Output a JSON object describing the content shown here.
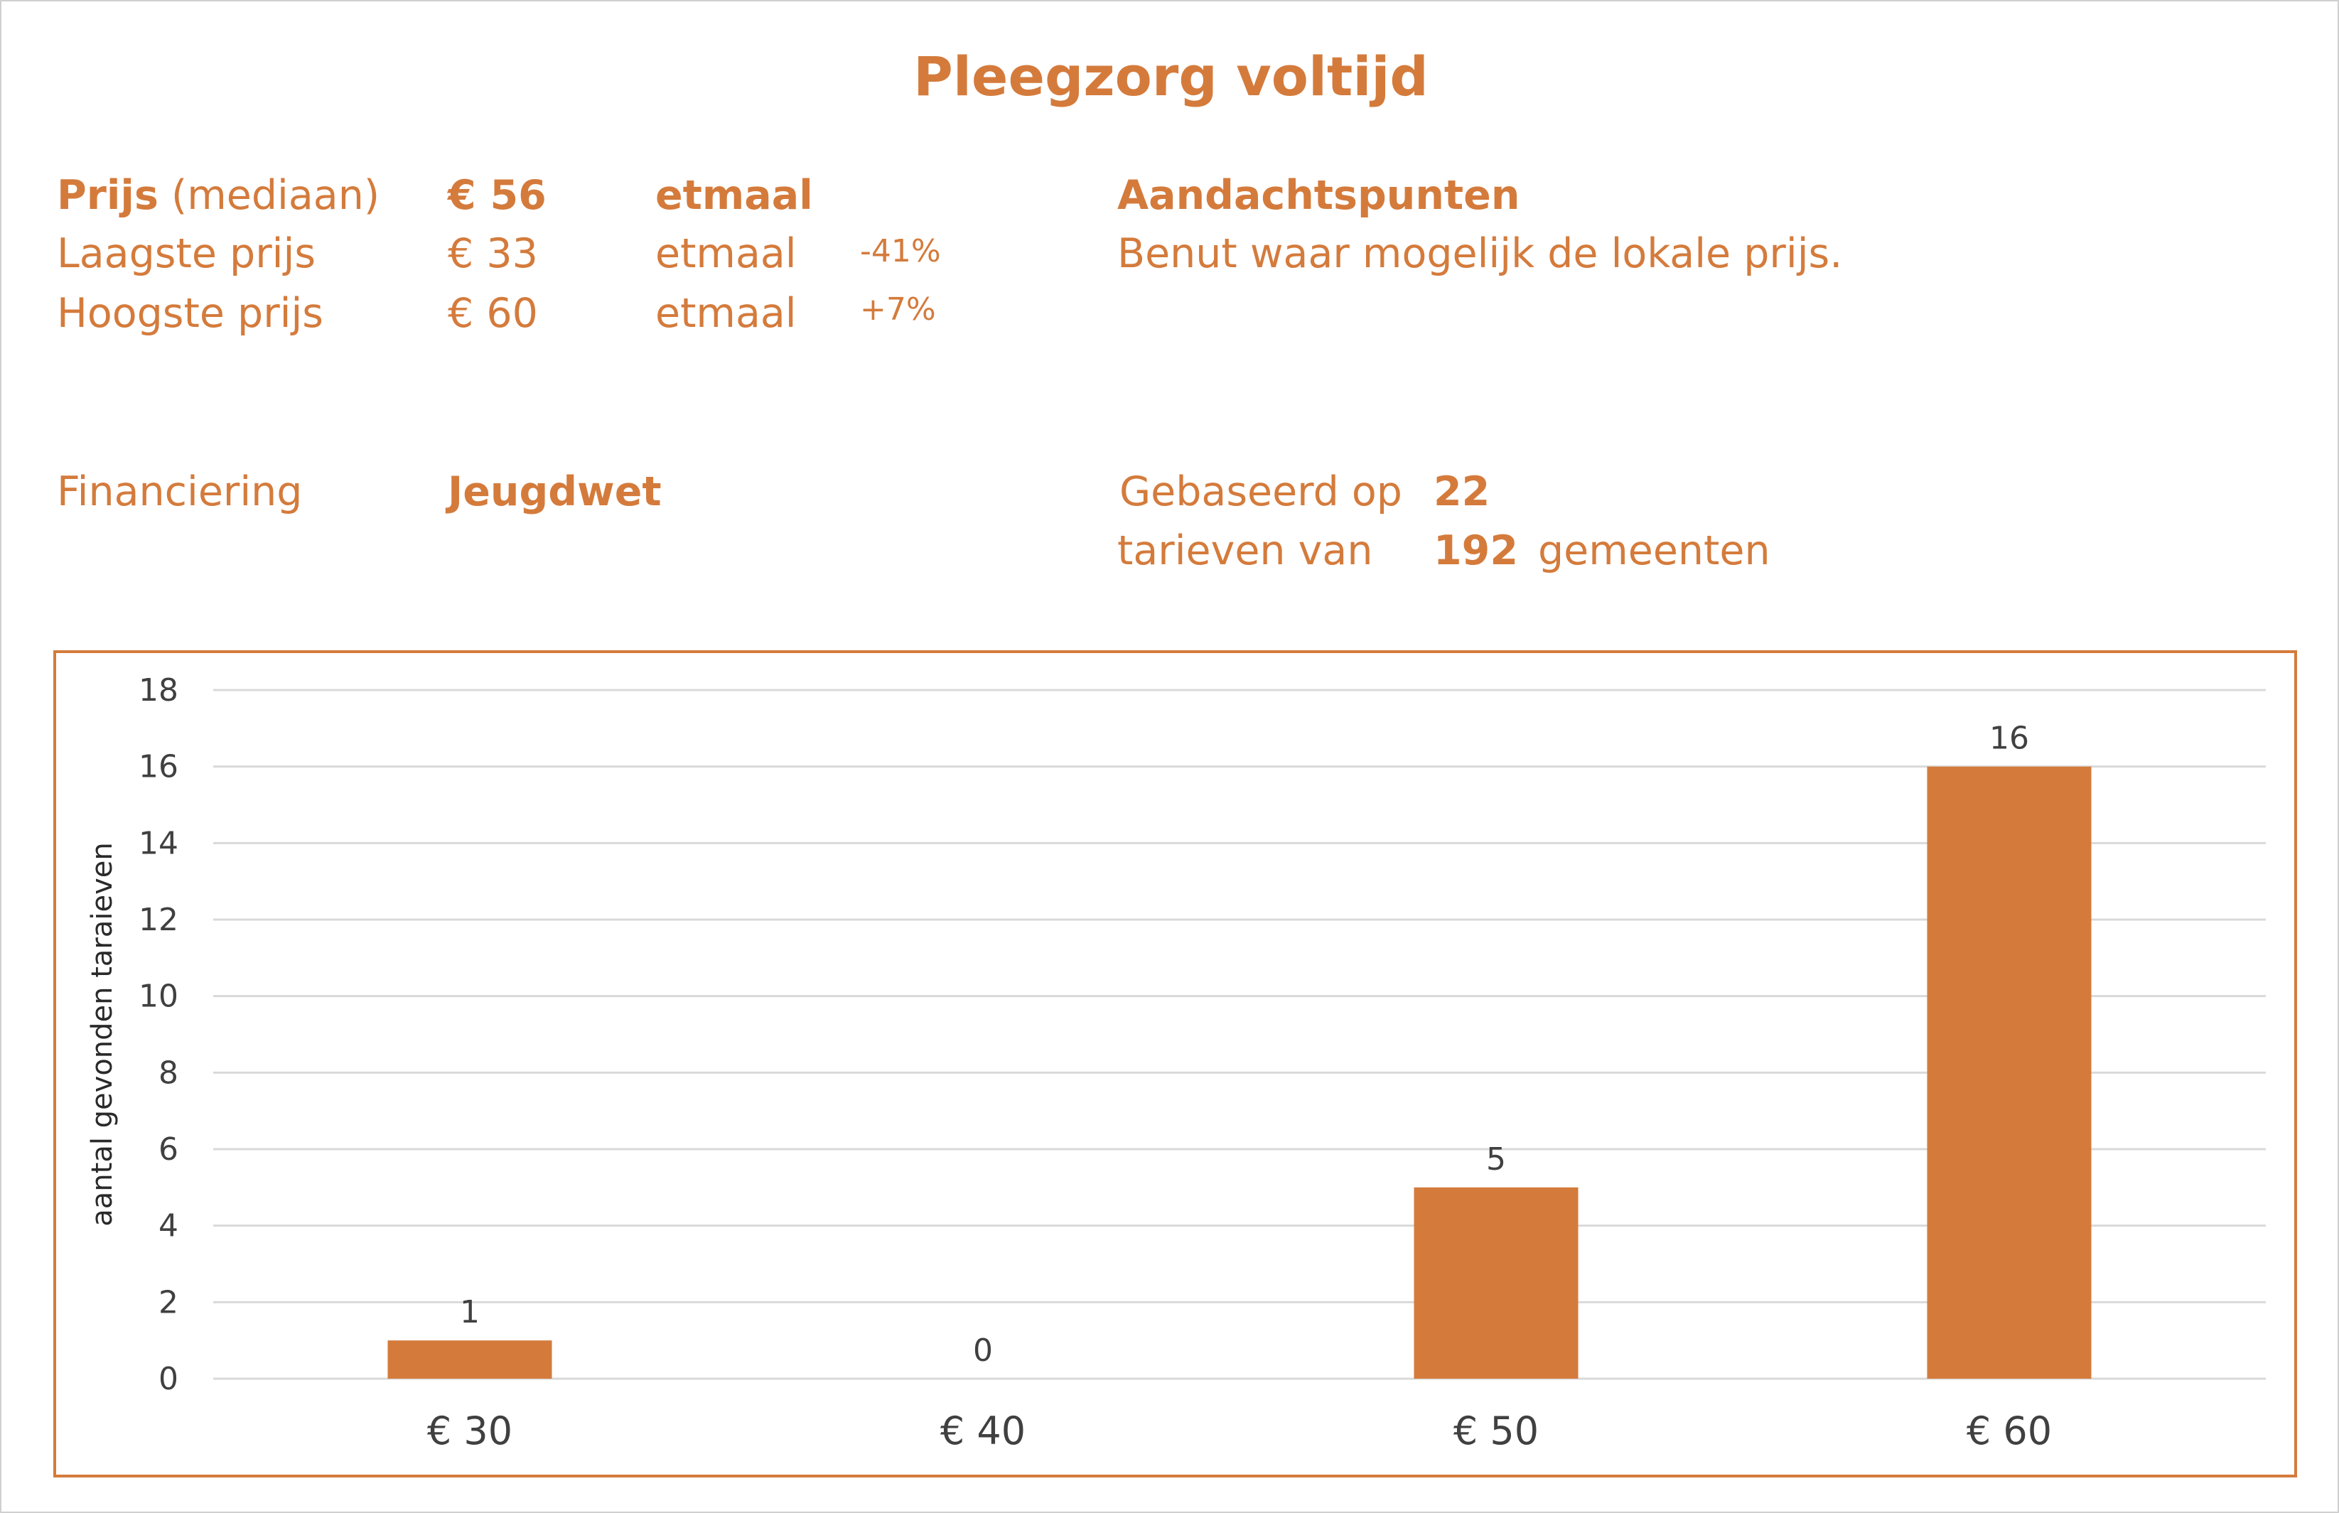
{
  "title": "Pleegzorg voltijd",
  "prices": {
    "median": {
      "label_bold": "Prijs",
      "label_rest": "(mediaan)",
      "value": "€ 56",
      "unit": "etmaal"
    },
    "lowest": {
      "label": "Laagste prijs",
      "value": "€ 33",
      "unit": "etmaal",
      "delta": "-41%"
    },
    "highest": {
      "label": "Hoogste prijs",
      "value": "€ 60",
      "unit": "etmaal",
      "delta": "+7%"
    }
  },
  "attention": {
    "heading": "Aandachtspunten",
    "text": "Benut waar mogelijk de lokale prijs."
  },
  "financing": {
    "label": "Financiering",
    "value": "Jeugdwet"
  },
  "basis": {
    "line1": "Gebaseerd op",
    "count": "22",
    "line2": "tarieven van",
    "municipalities": "192",
    "suffix": "gemeenten"
  },
  "colors": {
    "accent": "#d47b3c",
    "bar": "#d47b3c",
    "grid": "#d9d9d9",
    "axis_text": "#404040"
  },
  "chart_data": {
    "type": "bar",
    "categories": [
      "€ 30",
      "€ 40",
      "€ 50",
      "€ 60"
    ],
    "values": [
      1,
      0,
      5,
      16
    ],
    "data_labels": [
      "1",
      "0",
      "5",
      "16"
    ],
    "ylabel": "aantal gevonden taraieven",
    "xlabel": "",
    "ylim": [
      0,
      18
    ],
    "yticks": [
      0,
      2,
      4,
      6,
      8,
      10,
      12,
      14,
      16,
      18
    ],
    "grid": true,
    "legend": false
  }
}
